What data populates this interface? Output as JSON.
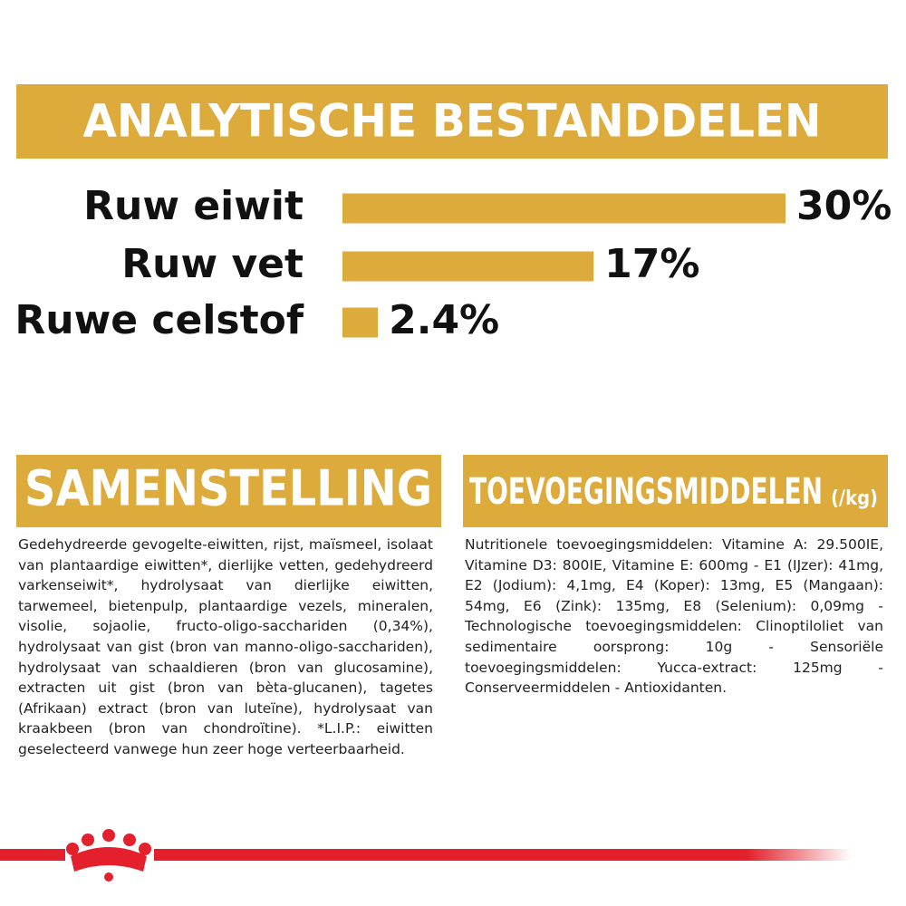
{
  "chart_data": {
    "type": "bar",
    "title": "ANALYTISCHE BESTANDDELEN",
    "categories": [
      "Ruw eiwit",
      "Ruw vet",
      "Ruwe celstof"
    ],
    "values": [
      30,
      17,
      2.4
    ],
    "value_labels": [
      "30%",
      "17%",
      "2.4%"
    ],
    "color": "#dcab3c"
  },
  "composition": {
    "title": "SAMENSTELLING",
    "text": "Gedehydreerde gevogelte-eiwitten, rijst, maïsmeel, isolaat van plantaardige eiwitten*, dierlijke vetten, gedehydreerd varkenseiwit*, hydrolysaat van dierlijke eiwitten, tarwemeel, bietenpulp, plantaardige vezels, mineralen, visolie, sojaolie, fructo-oligo-sacchariden (0,34%), hydrolysaat van gist (bron van manno-oligo-sacchariden), hydrolysaat van schaaldieren (bron van glucosamine), extracten uit gist (bron van bèta-glucanen), tagetes (Afrikaan) extract (bron van luteïne), hydrolysaat van kraakbeen (bron van chondroïtine). *L.I.P.: eiwitten geselecteerd vanwege hun zeer hoge verteerbaarheid."
  },
  "additives": {
    "title": "TOEVOEGINGSMIDDELEN",
    "unit": "(/kg)",
    "text": "Nutritionele toevoegingsmiddelen: Vitamine A: 29.500IE, Vitamine D3: 800IE, Vitamine E: 600mg - E1 (IJzer): 41mg, E2 (Jodium): 4,1mg, E4 (Koper): 13mg, E5 (Mangaan): 54mg, E6 (Zink): 135mg, E8 (Selenium): 0,09mg - Technologische toevoegingsmiddelen: Clinoptiloliet van sedimentaire oorsprong: 10g - Sensoriële toevoegingsmiddelen: Yucca-extract: 125mg - Conserveermiddelen - Antioxidanten."
  }
}
